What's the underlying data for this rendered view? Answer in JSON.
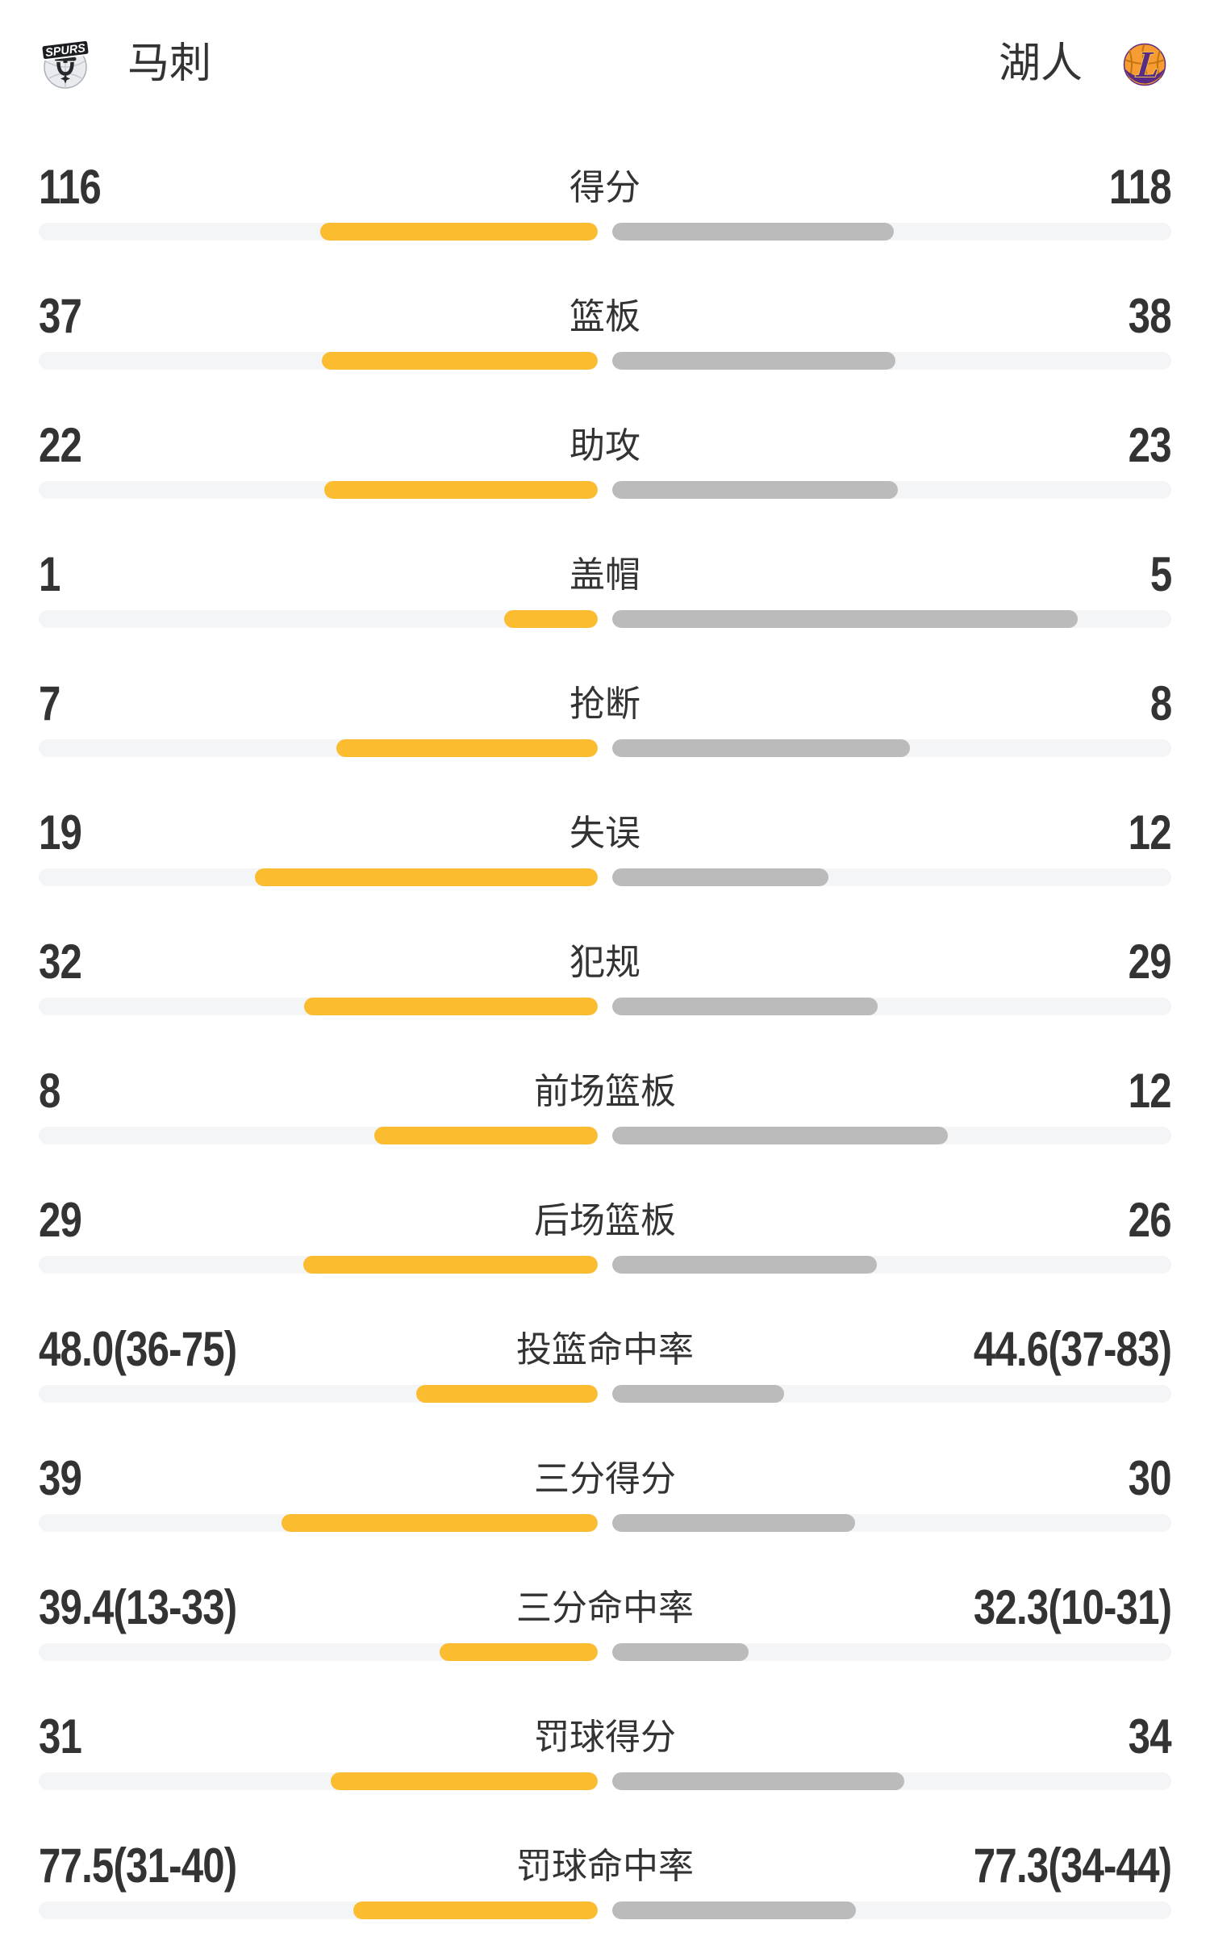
{
  "colors": {
    "left_bar": "#FBBC30",
    "right_bar": "#BBBBBB",
    "bar_track": "#F4F5F7",
    "text": "#333333",
    "background": "#FFFFFF"
  },
  "header": {
    "left_team": {
      "name": "马刺",
      "logo": "spurs-logo"
    },
    "right_team": {
      "name": "湖人",
      "logo": "lakers-logo"
    }
  },
  "chart_data": {
    "type": "bar",
    "orientation": "horizontal paired comparison, left bars right-anchored (yellow), right bars left-anchored (gray)",
    "teams": [
      "马刺",
      "湖人"
    ],
    "rows": [
      {
        "label": "得分",
        "left": "116",
        "right": "118",
        "left_fill": 49.6,
        "right_fill": 50.4
      },
      {
        "label": "篮板",
        "left": "37",
        "right": "38",
        "left_fill": 49.3,
        "right_fill": 50.7
      },
      {
        "label": "助攻",
        "left": "22",
        "right": "23",
        "left_fill": 48.9,
        "right_fill": 51.1
      },
      {
        "label": "盖帽",
        "left": "1",
        "right": "5",
        "left_fill": 16.7,
        "right_fill": 83.3
      },
      {
        "label": "抢断",
        "left": "7",
        "right": "8",
        "left_fill": 46.7,
        "right_fill": 53.3
      },
      {
        "label": "失误",
        "left": "19",
        "right": "12",
        "left_fill": 61.3,
        "right_fill": 38.7
      },
      {
        "label": "犯规",
        "left": "32",
        "right": "29",
        "left_fill": 52.5,
        "right_fill": 47.5
      },
      {
        "label": "前场篮板",
        "left": "8",
        "right": "12",
        "left_fill": 40.0,
        "right_fill": 60.0
      },
      {
        "label": "后场篮板",
        "left": "29",
        "right": "26",
        "left_fill": 52.7,
        "right_fill": 47.3
      },
      {
        "label": "投篮命中率",
        "left": "48.0(36-75)",
        "right": "44.6(37-83)",
        "left_fill": 32.4,
        "right_fill": 30.8
      },
      {
        "label": "三分得分",
        "left": "39",
        "right": "30",
        "left_fill": 56.5,
        "right_fill": 43.5
      },
      {
        "label": "三分命中率",
        "left": "39.4(13-33)",
        "right": "32.3(10-31)",
        "left_fill": 28.3,
        "right_fill": 24.4
      },
      {
        "label": "罚球得分",
        "left": "31",
        "right": "34",
        "left_fill": 47.7,
        "right_fill": 52.3
      },
      {
        "label": "罚球命中率",
        "left": "77.5(31-40)",
        "right": "77.3(34-44)",
        "left_fill": 43.7,
        "right_fill": 43.6
      }
    ]
  }
}
